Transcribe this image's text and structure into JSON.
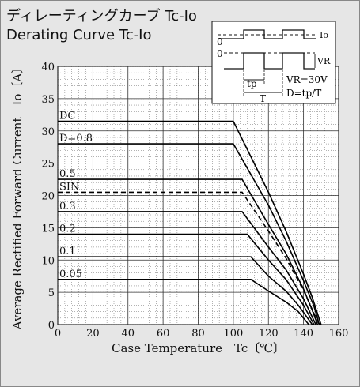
{
  "title": {
    "jp": "ディレーティングカーブ Tc-Io",
    "en": "Derating Curve Tc-Io"
  },
  "chart_data": {
    "type": "line",
    "xlabel": "Case Temperature　Tc〔℃〕",
    "ylabel": "Average Rectified Forward Current　Io〔A〕",
    "xlim": [
      0,
      160
    ],
    "ylim": [
      0,
      40
    ],
    "x_ticks": [
      0,
      20,
      40,
      60,
      80,
      100,
      120,
      140,
      160
    ],
    "y_ticks": [
      0,
      5,
      10,
      15,
      20,
      25,
      30,
      35,
      40
    ],
    "grid": true,
    "series": [
      {
        "name": "DC",
        "dash": false,
        "x": [
          0,
          100,
          120,
          130,
          140,
          145,
          150
        ],
        "y": [
          31.5,
          31.5,
          20.5,
          14.5,
          7.8,
          4.2,
          0
        ]
      },
      {
        "name": "D=0.8",
        "dash": false,
        "x": [
          0,
          100,
          120,
          130,
          140,
          146,
          149
        ],
        "y": [
          28,
          28,
          18.5,
          13,
          6.8,
          2.8,
          0
        ]
      },
      {
        "name": "0.5",
        "dash": false,
        "x": [
          0,
          105,
          120,
          130,
          140,
          145,
          148
        ],
        "y": [
          22.5,
          22.5,
          15.5,
          11,
          5.5,
          2.2,
          0
        ]
      },
      {
        "name": "SIN",
        "dash": true,
        "x": [
          0,
          105,
          120,
          130,
          140,
          145,
          149
        ],
        "y": [
          20.5,
          20.5,
          14.5,
          10.3,
          5.3,
          2.3,
          0
        ]
      },
      {
        "name": "0.3",
        "dash": false,
        "x": [
          0,
          105,
          120,
          130,
          140,
          147
        ],
        "y": [
          17.5,
          17.5,
          12,
          8.5,
          4,
          0
        ]
      },
      {
        "name": "0.2",
        "dash": false,
        "x": [
          0,
          108,
          120,
          130,
          140,
          146
        ],
        "y": [
          14,
          14,
          10,
          7,
          3,
          0
        ]
      },
      {
        "name": "0.1",
        "dash": false,
        "x": [
          0,
          110,
          120,
          130,
          137,
          145
        ],
        "y": [
          10.5,
          10.5,
          7.5,
          5.2,
          3,
          0
        ]
      },
      {
        "name": "0.05",
        "dash": false,
        "x": [
          0,
          110,
          120,
          130,
          137,
          143
        ],
        "y": [
          7,
          7,
          5.2,
          3.5,
          2,
          0
        ]
      }
    ]
  },
  "inset": {
    "label_io": "Io",
    "label_vr": "VR",
    "zero1": "0",
    "zero2": "0",
    "tp": "tp",
    "T": "T",
    "vr_value": "VR=30V",
    "d_formula": "D=tp/T"
  }
}
